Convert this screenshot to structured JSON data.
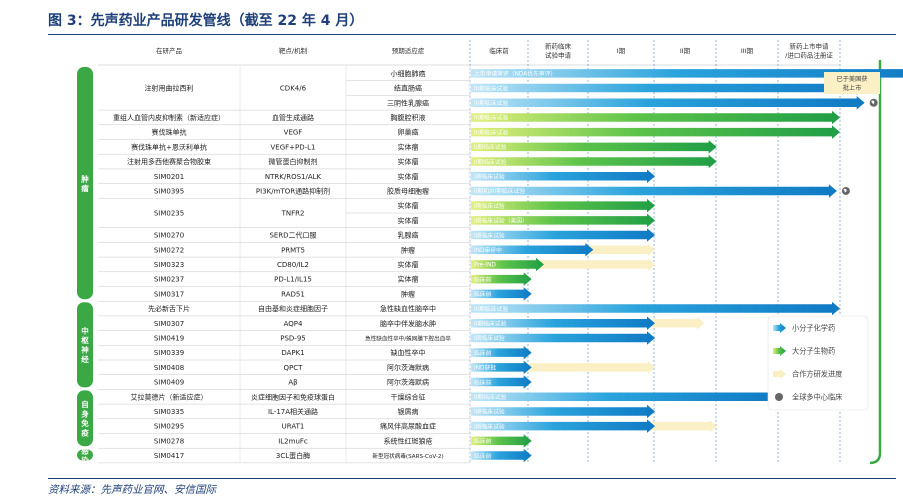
{
  "title": "图 3：先声药业产品研发管线（截至 22 年 4 月）",
  "source": "资料来源：先声药业官网、安信国际",
  "colors": {
    "small_molecule": "#1a8fd6",
    "biologic": "#3cb44a",
    "partner": "#fbefc6",
    "side_band": "#3aa845",
    "phase_line": "#2b6cb0"
  },
  "chart_data": {
    "type": "table",
    "headers": [
      "在研产品",
      "靶点/机制",
      "预期适应症",
      "临床前",
      "新药临床\n试验申请",
      "I期",
      "II期",
      "III期",
      "新药上市申请\n/进口药品注册证"
    ],
    "categories": [
      {
        "label": "肿瘤",
        "rows": 16
      },
      {
        "label": "中枢神经",
        "rows": 6
      },
      {
        "label": "自身免疫",
        "rows": 4
      },
      {
        "label": "感染",
        "rows": 1
      }
    ],
    "rows": [
      {
        "product": "注射用曲拉西利",
        "target": "CDK4/6",
        "indication": "小细胞肺癌",
        "bar_type": "small_molecule",
        "stage_end": 7.45,
        "label": "上市申请审评（NDA优先审评）",
        "global": false
      },
      {
        "product": "",
        "target": "",
        "indication": "结直肠癌",
        "bar_type": "small_molecule",
        "stage_end": 6.4,
        "label": "III期临床试验",
        "global": true
      },
      {
        "product": "",
        "target": "",
        "indication": "三阴性乳腺癌",
        "bar_type": "small_molecule",
        "stage_end": 6.4,
        "label": "III期临床试验",
        "global": true
      },
      {
        "product": "重组人血管内皮抑制素（新适应症）",
        "target": "血管生成通路",
        "indication": "胸腹腔积液",
        "bar_type": "biologic",
        "stage_end": 6.0,
        "label": "III期临床试验",
        "global": false
      },
      {
        "product": "赛伐珠单抗",
        "target": "VEGF",
        "indication": "卵巢癌",
        "bar_type": "biologic",
        "stage_end": 6.0,
        "label": "III期临床试验",
        "global": false
      },
      {
        "product": "赛伐珠单抗+恩沃利单抗",
        "target": "VEGF+PD-L1",
        "indication": "实体瘤",
        "bar_type": "biologic",
        "stage_end": 4.0,
        "label": "II期临床试验",
        "global": false
      },
      {
        "product": "注射用多西他赛聚合物胶束",
        "target": "微管蛋白抑制剂",
        "indication": "实体瘤",
        "bar_type": "biologic",
        "stage_end": 4.0,
        "label": "II期临床试验",
        "global": false
      },
      {
        "product": "SIM0201",
        "target": "NTRK/ROS1/ALK",
        "indication": "实体瘤",
        "bar_type": "small_molecule",
        "stage_end": 3.0,
        "label": "I期临床试验",
        "global": false
      },
      {
        "product": "SIM0395",
        "target": "PI3K/mTOR通路抑制剂",
        "indication": "胶质母细胞瘤",
        "bar_type": "small_molecule",
        "stage_end": 5.95,
        "label": "II期和/III期临床试验",
        "global": true
      },
      {
        "product": "SIM0235",
        "target": "TNFR2",
        "indication": "实体瘤",
        "bar_type": "biologic",
        "stage_end": 3.0,
        "label": "I期临床试验",
        "global": false
      },
      {
        "product": "",
        "target": "",
        "indication": "实体瘤",
        "bar_type": "biologic",
        "stage_end": 3.0,
        "label": "I期临床试验（美国）",
        "global": false
      },
      {
        "product": "SIM0270",
        "target": "SERD二代口服",
        "indication": "乳腺癌",
        "bar_type": "small_molecule",
        "stage_end": 3.0,
        "label": "I期临床试验",
        "global": false
      },
      {
        "product": "SIM0272",
        "target": "PRMT5",
        "indication": "肿瘤",
        "bar_type": "small_molecule",
        "stage_end": 2.0,
        "label": "IND审评中",
        "global": false,
        "partner_end": 3.0
      },
      {
        "product": "SIM0323",
        "target": "CD80/IL2",
        "indication": "实体瘤",
        "bar_type": "biologic",
        "stage_end": 1.2,
        "label": "Pre-IND",
        "global": false,
        "partner_end": 3.0
      },
      {
        "product": "SIM0237",
        "target": "PD-L1/IL15",
        "indication": "实体瘤",
        "bar_type": "biologic",
        "stage_end": 1.0,
        "label": "临床前",
        "global": false
      },
      {
        "product": "SIM0317",
        "target": "RAD51",
        "indication": "肿瘤",
        "bar_type": "small_molecule",
        "stage_end": 1.0,
        "label": "临床前",
        "global": false
      },
      {
        "product": "先必新舌下片",
        "target": "自由基和炎症细胞因子",
        "indication": "急性缺血性脑卒中",
        "bar_type": "small_molecule",
        "stage_end": 6.0,
        "label": "III期临床试验",
        "global": false
      },
      {
        "product": "SIM0307",
        "target": "AQP4",
        "indication": "脑卒中伴发脑水肿",
        "bar_type": "small_molecule",
        "stage_end": 3.0,
        "label": "II期临床试验",
        "global": false,
        "partner_end": 3.8
      },
      {
        "product": "SIM0419",
        "target": "PSD-95",
        "indication": "急性缺血性卒中/蛛网膜下腔出血卒",
        "bar_type": "small_molecule",
        "stage_end": 3.0,
        "label": "I期临床试验",
        "global": false
      },
      {
        "product": "SIM0339",
        "target": "DAPK1",
        "indication": "缺血性卒中",
        "bar_type": "small_molecule",
        "stage_end": 1.0,
        "label": "临床前",
        "global": false
      },
      {
        "product": "SIM0408",
        "target": "QPCT",
        "indication": "阿尔茨海默病",
        "bar_type": "small_molecule",
        "stage_end": 1.0,
        "label": "IND获批",
        "global": false,
        "partner_end": 3.0
      },
      {
        "product": "SIM0409",
        "target": "Aβ",
        "indication": "阿尔茨海默病",
        "bar_type": "small_molecule",
        "stage_end": 1.0,
        "label": "临床前",
        "global": false
      },
      {
        "product": "艾拉莫德片（新适应症）",
        "target": "炎症细胞因子和免疫球蛋白",
        "indication": "干燥综合征",
        "bar_type": "small_molecule",
        "stage_end": 5.0,
        "label": "II期临床试验",
        "global": false
      },
      {
        "product": "SIM0335",
        "target": "IL-17A相关通路",
        "indication": "银屑病",
        "bar_type": "small_molecule",
        "stage_end": 3.0,
        "label": "I期临床试验",
        "global": false
      },
      {
        "product": "SIM0295",
        "target": "URAT1",
        "indication": "痛风伴高尿酸血症",
        "bar_type": "small_molecule",
        "stage_end": 3.0,
        "label": "I期临床试验",
        "global": false,
        "partner_end": 4.0
      },
      {
        "product": "SIM0278",
        "target": "IL2muFc",
        "indication": "系统性红斑狼疮",
        "bar_type": "biologic",
        "stage_end": 1.0,
        "label": "临床前",
        "global": false
      },
      {
        "product": "SIM0417",
        "target": "3CL蛋白酶",
        "indication": "新型冠状病毒(SARS-CoV-2)",
        "bar_type": "small_molecule",
        "stage_end": 1.0,
        "label": "临床前",
        "global": false
      }
    ],
    "callout": "已于美国获批上市",
    "legend": [
      {
        "name": "小分子化学药",
        "type": "small_molecule"
      },
      {
        "name": "大分子生物药",
        "type": "biologic"
      },
      {
        "name": "合作方研发进度",
        "type": "partner"
      },
      {
        "name": "全球多中心临床",
        "type": "global"
      }
    ]
  }
}
